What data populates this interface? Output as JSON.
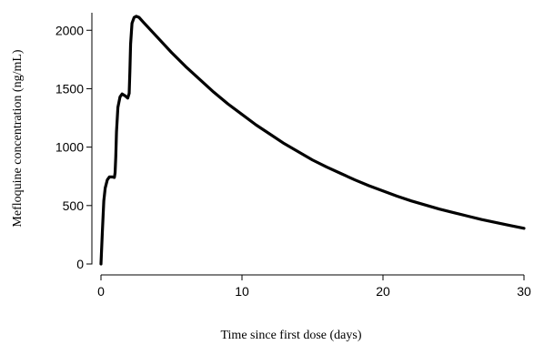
{
  "chart_data": {
    "type": "line",
    "title": "",
    "xlabel": "Time since first dose (days)",
    "ylabel": "Mefloquine concentration (ng/mL)",
    "xlim": [
      0,
      30
    ],
    "ylim": [
      0,
      2150
    ],
    "xticks": [
      0,
      10,
      20,
      30
    ],
    "yticks": [
      0,
      500,
      1000,
      1500,
      2000
    ],
    "grid": false,
    "legend": "none",
    "series": [
      {
        "color": "#000000",
        "x": [
          0,
          0.1,
          0.2,
          0.3,
          0.45,
          0.6,
          0.8,
          0.95,
          1.0,
          1.05,
          1.1,
          1.2,
          1.35,
          1.5,
          1.7,
          1.9,
          2.0,
          2.05,
          2.1,
          2.2,
          2.35,
          2.5,
          2.7,
          3,
          4,
          5,
          6,
          7,
          8,
          9,
          10,
          11,
          12,
          13,
          14,
          15,
          16,
          17,
          18,
          19,
          20,
          21,
          22,
          23,
          24,
          25,
          26,
          27,
          28,
          29,
          30
        ],
        "y": [
          0,
          280,
          540,
          650,
          720,
          745,
          745,
          740,
          780,
          920,
          1130,
          1340,
          1430,
          1455,
          1440,
          1420,
          1460,
          1650,
          1880,
          2060,
          2110,
          2120,
          2110,
          2070,
          1940,
          1810,
          1690,
          1580,
          1470,
          1370,
          1280,
          1190,
          1110,
          1030,
          960,
          890,
          830,
          775,
          720,
          670,
          625,
          580,
          540,
          505,
          470,
          440,
          410,
          380,
          355,
          330,
          305
        ]
      }
    ]
  }
}
